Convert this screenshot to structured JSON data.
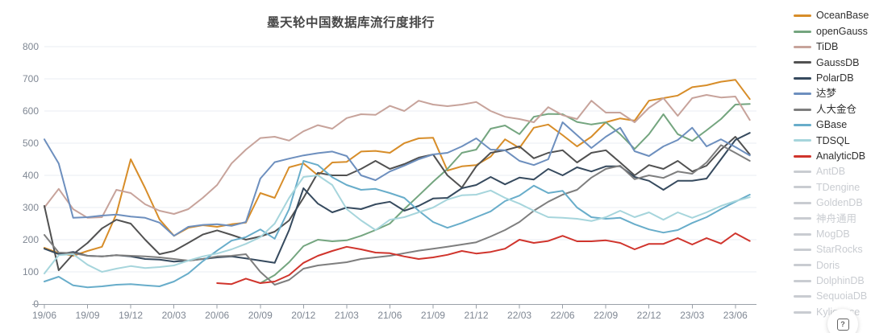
{
  "title": "墨天轮中国数据库流行度排行",
  "help_button": {
    "icon": "question-mark"
  },
  "chart_data": {
    "type": "line",
    "title": "墨天轮中国数据库流行度排行",
    "xlabel": "",
    "ylabel": "",
    "ylim": [
      0,
      800
    ],
    "y_ticks": [
      0,
      100,
      200,
      300,
      400,
      500,
      600,
      700,
      800
    ],
    "grid": "horizontal",
    "legend_position": "right",
    "x_tick_labels": [
      "19/06",
      "19/09",
      "19/12",
      "20/03",
      "20/06",
      "20/09",
      "20/12",
      "21/03",
      "21/06",
      "21/09",
      "21/12",
      "22/03",
      "22/06",
      "22/09",
      "22/12",
      "23/03",
      "23/06"
    ],
    "x": [
      "19/06",
      "19/07",
      "19/08",
      "19/09",
      "19/10",
      "19/11",
      "19/12",
      "20/01",
      "20/02",
      "20/03",
      "20/04",
      "20/05",
      "20/06",
      "20/07",
      "20/08",
      "20/09",
      "20/10",
      "20/11",
      "20/12",
      "21/01",
      "21/02",
      "21/03",
      "21/04",
      "21/05",
      "21/06",
      "21/07",
      "21/08",
      "21/09",
      "21/10",
      "21/11",
      "21/12",
      "22/01",
      "22/02",
      "22/03",
      "22/04",
      "22/05",
      "22/06",
      "22/07",
      "22/08",
      "22/09",
      "22/10",
      "22/11",
      "22/12",
      "23/01",
      "23/02",
      "23/03",
      "23/04",
      "23/05",
      "23/06",
      "23/07"
    ],
    "series": [
      {
        "name": "OceanBase",
        "color": "#d78d29",
        "active": true,
        "values": [
          175,
          158,
          150,
          165,
          178,
          280,
          450,
          360,
          263,
          212,
          237,
          245,
          240,
          248,
          253,
          345,
          330,
          425,
          437,
          400,
          440,
          442,
          474,
          476,
          470,
          500,
          515,
          517,
          415,
          428,
          432,
          458,
          512,
          485,
          548,
          558,
          525,
          490,
          520,
          565,
          577,
          570,
          632,
          640,
          648,
          674,
          680,
          691,
          697,
          637
        ]
      },
      {
        "name": "openGauss",
        "color": "#74a57f",
        "active": true,
        "values": [
          null,
          null,
          null,
          null,
          null,
          null,
          null,
          null,
          null,
          null,
          null,
          null,
          null,
          null,
          null,
          65,
          90,
          130,
          180,
          200,
          195,
          198,
          212,
          230,
          250,
          295,
          337,
          380,
          420,
          470,
          480,
          545,
          555,
          528,
          582,
          591,
          590,
          566,
          558,
          565,
          528,
          482,
          528,
          590,
          528,
          507,
          540,
          575,
          620,
          622
        ]
      },
      {
        "name": "TiDB",
        "color": "#c7a39b",
        "active": true,
        "values": [
          300,
          358,
          295,
          268,
          270,
          355,
          345,
          310,
          290,
          280,
          295,
          330,
          370,
          437,
          480,
          516,
          520,
          508,
          537,
          556,
          545,
          578,
          590,
          588,
          616,
          600,
          632,
          620,
          615,
          620,
          628,
          600,
          582,
          575,
          565,
          612,
          587,
          575,
          632,
          595,
          595,
          565,
          610,
          640,
          585,
          640,
          650,
          642,
          645,
          572
        ]
      },
      {
        "name": "GaussDB",
        "color": "#515151",
        "active": true,
        "values": [
          305,
          105,
          155,
          190,
          235,
          262,
          250,
          200,
          155,
          165,
          190,
          216,
          229,
          215,
          200,
          210,
          225,
          260,
          330,
          408,
          400,
          400,
          420,
          445,
          420,
          435,
          455,
          465,
          400,
          362,
          428,
          470,
          478,
          490,
          453,
          470,
          478,
          440,
          470,
          478,
          440,
          400,
          432,
          420,
          445,
          412,
          430,
          480,
          520,
          465
        ]
      },
      {
        "name": "PolarDB",
        "color": "#364a5e",
        "active": true,
        "values": [
          172,
          155,
          162,
          150,
          148,
          152,
          148,
          140,
          138,
          132,
          135,
          140,
          145,
          148,
          142,
          135,
          128,
          230,
          360,
          312,
          285,
          300,
          295,
          310,
          318,
          290,
          305,
          328,
          330,
          360,
          370,
          395,
          372,
          393,
          387,
          420,
          400,
          425,
          412,
          428,
          428,
          395,
          383,
          355,
          383,
          383,
          390,
          450,
          510,
          532
        ]
      },
      {
        "name": "达梦",
        "color": "#6d8fbe",
        "active": true,
        "values": [
          512,
          437,
          268,
          270,
          275,
          278,
          272,
          268,
          253,
          212,
          240,
          246,
          248,
          243,
          255,
          390,
          441,
          452,
          462,
          469,
          474,
          460,
          400,
          385,
          412,
          430,
          450,
          465,
          470,
          490,
          515,
          480,
          478,
          445,
          432,
          450,
          565,
          525,
          485,
          520,
          548,
          475,
          460,
          490,
          510,
          548,
          490,
          512,
          488,
          462
        ]
      },
      {
        "name": "人大金仓",
        "color": "#7e7e7e",
        "active": true,
        "values": [
          215,
          160,
          158,
          150,
          148,
          152,
          150,
          148,
          145,
          140,
          135,
          140,
          148,
          150,
          155,
          100,
          60,
          75,
          110,
          120,
          125,
          130,
          140,
          145,
          150,
          158,
          166,
          172,
          178,
          185,
          192,
          210,
          230,
          255,
          290,
          318,
          340,
          355,
          393,
          420,
          430,
          388,
          400,
          392,
          412,
          405,
          440,
          494,
          470,
          445
        ]
      },
      {
        "name": "GBase",
        "color": "#68adca",
        "active": true,
        "values": [
          70,
          85,
          58,
          52,
          55,
          60,
          62,
          58,
          55,
          70,
          95,
          133,
          166,
          197,
          208,
          232,
          203,
          295,
          445,
          432,
          394,
          370,
          355,
          358,
          345,
          330,
          290,
          255,
          237,
          252,
          270,
          288,
          320,
          337,
          368,
          345,
          352,
          300,
          270,
          265,
          268,
          248,
          232,
          222,
          230,
          252,
          270,
          295,
          318,
          340
        ]
      },
      {
        "name": "TDSQL",
        "color": "#a6d5dc",
        "active": true,
        "values": [
          95,
          152,
          155,
          122,
          100,
          110,
          118,
          112,
          115,
          120,
          135,
          148,
          157,
          170,
          187,
          208,
          250,
          330,
          395,
          400,
          370,
          295,
          260,
          230,
          262,
          270,
          285,
          300,
          325,
          338,
          340,
          353,
          330,
          312,
          290,
          270,
          268,
          265,
          258,
          270,
          290,
          270,
          285,
          262,
          285,
          268,
          285,
          305,
          320,
          332
        ]
      },
      {
        "name": "AnalyticDB",
        "color": "#d0342c",
        "active": true,
        "values": [
          null,
          null,
          null,
          null,
          null,
          null,
          null,
          null,
          null,
          null,
          null,
          null,
          65,
          62,
          79,
          65,
          70,
          90,
          128,
          150,
          165,
          178,
          170,
          160,
          158,
          148,
          140,
          145,
          153,
          165,
          157,
          162,
          172,
          200,
          190,
          196,
          212,
          195,
          195,
          198,
          190,
          170,
          187,
          187,
          205,
          185,
          205,
          188,
          220,
          196
        ]
      },
      {
        "name": "AntDB",
        "color": null,
        "active": false,
        "values": []
      },
      {
        "name": "TDengine",
        "color": null,
        "active": false,
        "values": []
      },
      {
        "name": "GoldenDB",
        "color": null,
        "active": false,
        "values": []
      },
      {
        "name": "神舟通用",
        "color": null,
        "active": false,
        "values": []
      },
      {
        "name": "MogDB",
        "color": null,
        "active": false,
        "values": []
      },
      {
        "name": "StarRocks",
        "color": null,
        "active": false,
        "values": []
      },
      {
        "name": "Doris",
        "color": null,
        "active": false,
        "values": []
      },
      {
        "name": "DolphinDB",
        "color": null,
        "active": false,
        "values": []
      },
      {
        "name": "SequoiaDB",
        "color": null,
        "active": false,
        "values": []
      },
      {
        "name": "Kyligence",
        "color": null,
        "active": false,
        "values": []
      }
    ],
    "style": {
      "inactive_legend_color": "#c9ccd1",
      "grid_color": "#e8edf3",
      "axis_line_color": "#9aa0a8",
      "tick_label_color": "#7f8793",
      "help_label": "?"
    }
  }
}
